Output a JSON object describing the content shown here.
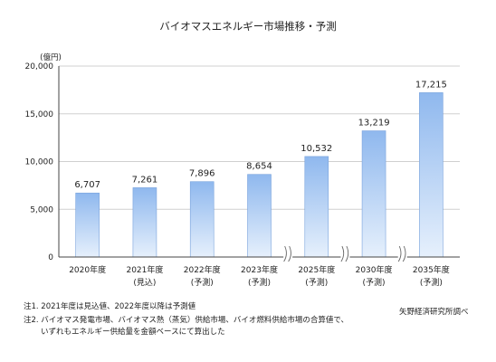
{
  "chart_data": {
    "type": "bar",
    "title": "バイオマスエネルギー市場推移・予測",
    "unit_label": "(億円)",
    "categories": [
      [
        "2020年度",
        ""
      ],
      [
        "2021年度",
        "(見込)"
      ],
      [
        "2022年度",
        "(予測)"
      ],
      [
        "2023年度",
        "(予測)"
      ],
      [
        "2025年度",
        "(予測)"
      ],
      [
        "2030年度",
        "(予測)"
      ],
      [
        "2035年度",
        "(予測)"
      ]
    ],
    "values": [
      6707,
      7261,
      7896,
      8654,
      10532,
      13219,
      17215
    ],
    "value_labels": [
      "6,707",
      "7,261",
      "7,896",
      "8,654",
      "10,532",
      "13,219",
      "17,215"
    ],
    "ylim": [
      0,
      20000
    ],
    "yticks": [
      0,
      5000,
      10000,
      15000,
      20000
    ],
    "ytick_labels": [
      "0",
      "5,000",
      "10,000",
      "15,000",
      "20,000"
    ],
    "axis_breaks_after": [
      3,
      4,
      5
    ],
    "grid": true,
    "bar_color_top": "#8fb8ee",
    "bar_color_bottom": "#e6f0fc",
    "bar_border": "#7aa3dc"
  },
  "notes": {
    "note1": "注1. 2021年度は見込値、2022年度以降は予測値",
    "note2": "注2. バイオマス発電市場、バイオマス熱（蒸気）供給市場、バイオ燃料供給市場の合算値で、",
    "note3": "いずれもエネルギー供給量を金額ベースにて算出した",
    "source": "矢野経済研究所調べ"
  }
}
